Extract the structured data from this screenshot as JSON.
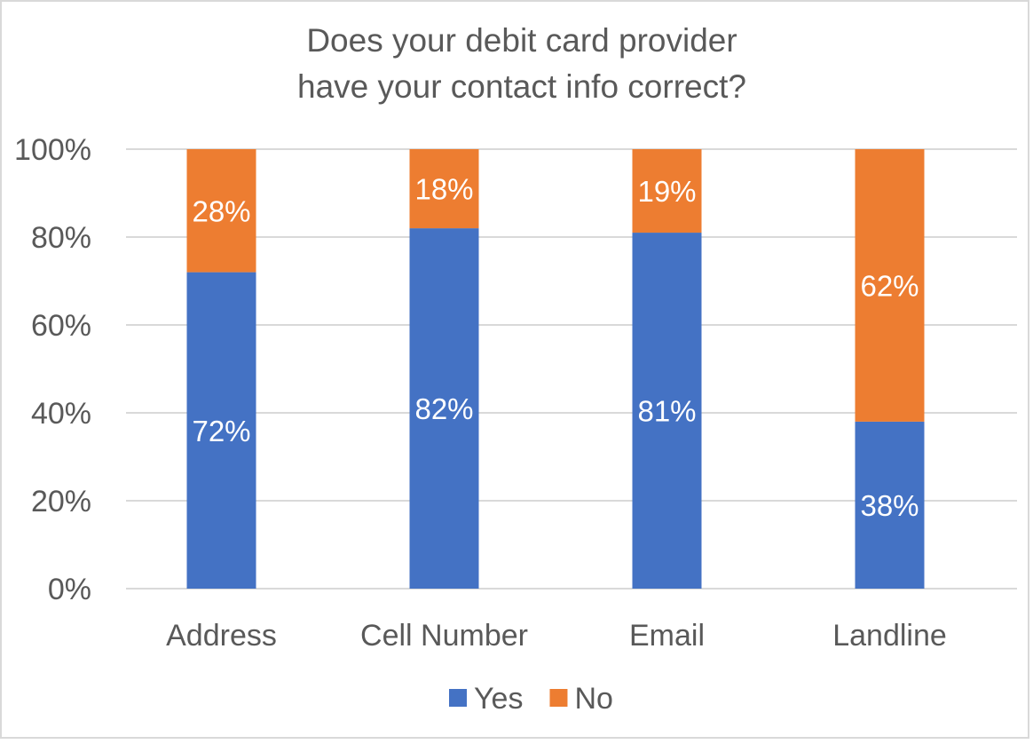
{
  "chart_data": {
    "type": "bar",
    "stacked": true,
    "percent_stacked": true,
    "title_lines": [
      "Does your debit card provider",
      "have your contact info correct?"
    ],
    "categories": [
      "Address",
      "Cell Number",
      "Email",
      "Landline"
    ],
    "series": [
      {
        "name": "Yes",
        "values": [
          72,
          82,
          81,
          38
        ],
        "labels": [
          "72%",
          "82%",
          "81%",
          "38%"
        ],
        "color": "#4472c4"
      },
      {
        "name": "No",
        "values": [
          28,
          18,
          19,
          62
        ],
        "labels": [
          "28%",
          "18%",
          "19%",
          "62%"
        ],
        "color": "#ed7d31"
      }
    ],
    "yticks": [
      "0%",
      "20%",
      "40%",
      "60%",
      "80%",
      "100%"
    ],
    "ylim": [
      0,
      100
    ],
    "grid": true,
    "legend_position": "bottom",
    "gridline_color": "#d9d9d9",
    "label_color": "#ffffff",
    "text_color": "#595959"
  }
}
